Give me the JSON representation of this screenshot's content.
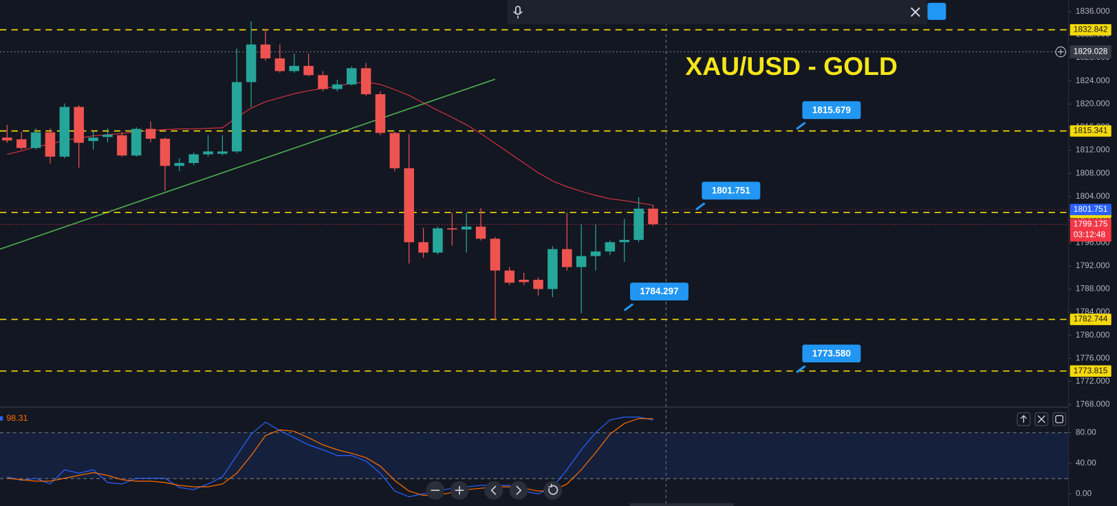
{
  "chart_data": [
    {
      "type": "candlestick",
      "title": "XAU/USD - GOLD",
      "open": [
        1814.2,
        1813.9,
        1812.4,
        1815.1,
        1810.9,
        1819.5,
        1813.6,
        1814.3,
        1814.6,
        1811.1,
        1815.7,
        1814.0,
        1809.3,
        1809.8,
        1811.3,
        1811.4,
        1811.8,
        1823.8,
        1830.3,
        1827.9,
        1825.7,
        1826.6,
        1825.0,
        1822.6,
        1823.4,
        1826.2,
        1821.7,
        1815.0,
        1808.9,
        1796.1,
        1794.3,
        1798.5,
        1798.3,
        1798.8,
        1796.7,
        1791.2,
        1789.6,
        1789.6,
        1788.0,
        1794.9,
        1791.8,
        1793.7,
        1794.5,
        1796.1,
        1796.5,
        1801.9
      ],
      "high": [
        1816.4,
        1815.2,
        1815.8,
        1815.8,
        1820.1,
        1819.8,
        1815.2,
        1815.8,
        1815.2,
        1816.0,
        1817.0,
        1814.2,
        1810.6,
        1811.6,
        1814.6,
        1814.6,
        1829.6,
        1834.3,
        1833.0,
        1830.3,
        1828.7,
        1828.7,
        1825.7,
        1824.2,
        1826.5,
        1827.1,
        1822.2,
        1815.2,
        1814.8,
        1798.6,
        1798.8,
        1801.2,
        1801.2,
        1802.0,
        1797.0,
        1791.8,
        1790.8,
        1790.0,
        1795.4,
        1801.2,
        1799.2,
        1799.2,
        1796.4,
        1800.1,
        1803.9,
        1802.5
      ],
      "low": [
        1813.3,
        1812.1,
        1812.1,
        1809.7,
        1810.6,
        1809.0,
        1812.1,
        1813.4,
        1810.9,
        1810.9,
        1813.4,
        1805.0,
        1808.4,
        1809.4,
        1810.9,
        1811.1,
        1811.5,
        1819.5,
        1827.5,
        1825.4,
        1825.4,
        1824.8,
        1822.2,
        1822.2,
        1823.2,
        1821.4,
        1814.6,
        1808.4,
        1792.4,
        1793.4,
        1794.0,
        1795.5,
        1794.3,
        1796.4,
        1782.6,
        1788.7,
        1788.7,
        1786.9,
        1786.6,
        1791.2,
        1783.8,
        1791.2,
        1793.9,
        1792.7,
        1796.1,
        1798.9
      ],
      "close": [
        1813.7,
        1812.4,
        1815.1,
        1810.9,
        1819.5,
        1813.3,
        1814.2,
        1814.7,
        1811.1,
        1815.7,
        1814.0,
        1809.3,
        1809.8,
        1811.3,
        1811.8,
        1811.8,
        1823.8,
        1830.3,
        1827.9,
        1825.7,
        1826.6,
        1825.0,
        1822.6,
        1823.4,
        1826.2,
        1821.7,
        1815.0,
        1808.9,
        1796.1,
        1794.3,
        1798.5,
        1798.3,
        1798.8,
        1796.7,
        1791.2,
        1789.1,
        1789.2,
        1788.0,
        1794.9,
        1791.8,
        1793.7,
        1794.5,
        1796.1,
        1796.5,
        1801.9,
        1799.2
      ],
      "up_color": "#26a69a",
      "down_color": "#ef5350",
      "moving_average": {
        "color": "#f23645",
        "values": [
          1811.3,
          1811.9,
          1812.6,
          1813.1,
          1813.7,
          1814.1,
          1814.5,
          1814.7,
          1814.9,
          1815.2,
          1815.4,
          1815.6,
          1815.7,
          1815.7,
          1815.8,
          1815.9,
          1817.7,
          1819.3,
          1820.4,
          1821.1,
          1821.8,
          1822.3,
          1822.7,
          1823.1,
          1823.6,
          1823.8,
          1823.4,
          1822.5,
          1821.5,
          1820.2,
          1818.9,
          1817.7,
          1816.4,
          1814.9,
          1813.2,
          1811.5,
          1809.8,
          1808.1,
          1806.7,
          1805.7,
          1804.9,
          1804.2,
          1803.6,
          1803.3,
          1802.9,
          1802.5
        ]
      },
      "trend_line": {
        "color": "#4caf50",
        "x": [
          -0.5,
          34
        ],
        "values": [
          1794.9,
          1824.3
        ]
      },
      "levels": {
        "color": "#f5d90a",
        "values": [
          1832.842,
          1815.341,
          1801.241,
          1782.744,
          1773.815
        ]
      },
      "callouts": [
        {
          "x": 55,
          "value": 1815.679
        },
        {
          "x": 48,
          "value": 1801.751
        },
        {
          "x": 43,
          "value": 1784.297
        },
        {
          "x": 55,
          "value": 1773.58,
          "label": "1773.580"
        }
      ],
      "alert_price": 1801.751,
      "last_price": 1799.175,
      "last_price_timer": "03:12:48",
      "crosshair_price": 1829.028,
      "ylim": [
        1767.7,
        1838.0
      ],
      "yticks": [
        {
          "value": 1768,
          "label": "1768.000"
        },
        {
          "value": 1772,
          "label": "1772.000"
        },
        {
          "value": 1776,
          "label": "1776.000"
        },
        {
          "value": 1780,
          "label": "1780.000"
        },
        {
          "value": 1784,
          "label": "1784.000"
        },
        {
          "value": 1788,
          "label": "1788.000"
        },
        {
          "value": 1792,
          "label": "1792.000"
        },
        {
          "value": 1796,
          "label": "1796.000"
        },
        {
          "value": 1800,
          "label": "1800.000"
        },
        {
          "value": 1804,
          "label": "1804.000"
        },
        {
          "value": 1808,
          "label": "1808.000"
        },
        {
          "value": 1812,
          "label": "1812.000"
        },
        {
          "value": 1816,
          "label": "1816.000"
        },
        {
          "value": 1820,
          "label": "1820.000"
        },
        {
          "value": 1824,
          "label": "1824.000"
        },
        {
          "value": 1828,
          "label": "1828.000"
        },
        {
          "value": 1832,
          "label": "1832.000"
        },
        {
          "value": 1836,
          "label": "1836.000"
        }
      ]
    },
    {
      "type": "line",
      "series": [
        {
          "color": "#2962ff",
          "values": [
            22.3,
            17.7,
            20.5,
            13.0,
            31.6,
            27.0,
            31.6,
            14.9,
            13.0,
            20.5,
            20.5,
            20.5,
            8.4,
            5.6,
            13.0,
            22.3,
            50.2,
            78.1,
            93.9,
            82.8,
            73.5,
            64.2,
            57.7,
            50.2,
            50.2,
            42.8,
            27.0,
            3.7,
            -3.7,
            0,
            3.7,
            7.4,
            9.3,
            11.2,
            11.2,
            11.2,
            3.7,
            0,
            8.4,
            31.6,
            57.7,
            80.0,
            96.7,
            100.5,
            100.5,
            96.7
          ]
        },
        {
          "color": "#ff6d00",
          "values": [
            20.5,
            18.6,
            16.7,
            16.7,
            20.5,
            24.2,
            27.9,
            24.2,
            18.6,
            16.7,
            16.7,
            14.9,
            11.2,
            9.3,
            9.3,
            13.0,
            27.0,
            50.2,
            76.3,
            83.7,
            81.9,
            73.5,
            64.2,
            57.7,
            53.0,
            47.4,
            36.3,
            17.7,
            3.7,
            -1.9,
            -1.9,
            1.9,
            5.6,
            7.4,
            9.3,
            9.3,
            7.4,
            3.7,
            3.7,
            13.0,
            31.6,
            54.0,
            78.1,
            92.1,
            98.6,
            98.31
          ]
        }
      ],
      "bands": [
        20,
        80
      ],
      "band_color": "#2962ff",
      "ylim": [
        -15.8,
        112.6
      ],
      "yticks": [
        {
          "value": 0,
          "label": "0.00"
        },
        {
          "value": 40,
          "label": "40.00"
        },
        {
          "value": 80,
          "label": "80.00"
        }
      ]
    }
  ]
}
